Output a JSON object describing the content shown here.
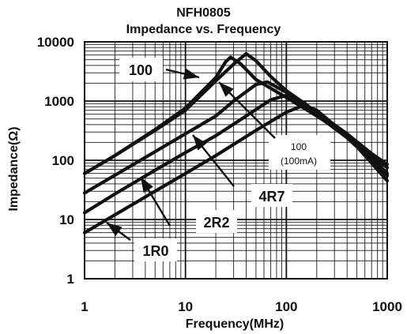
{
  "chart_data": {
    "type": "line",
    "title": "NFH0805",
    "subtitle": "Impedance vs. Frequency",
    "xlabel": "Frequency(MHz)",
    "ylabel": "Impedance(Ω)",
    "xscale": "log",
    "yscale": "log",
    "xlim": [
      1,
      1000
    ],
    "ylim": [
      1,
      10000
    ],
    "grid": true,
    "legend": "none",
    "x_ticks": [
      {
        "value": 1,
        "label": "1"
      },
      {
        "value": 10,
        "label": "10"
      },
      {
        "value": 100,
        "label": "100"
      },
      {
        "value": 1000,
        "label": "1000"
      }
    ],
    "y_ticks": [
      {
        "value": 1,
        "label": "1"
      },
      {
        "value": 10,
        "label": "10"
      },
      {
        "value": 100,
        "label": "100"
      },
      {
        "value": 1000,
        "label": "1000"
      },
      {
        "value": 10000,
        "label": "10000"
      }
    ],
    "series": [
      {
        "name": "100",
        "points": [
          [
            1,
            60
          ],
          [
            2,
            120
          ],
          [
            5,
            320
          ],
          [
            10,
            700
          ],
          [
            20,
            2200
          ],
          [
            30,
            4200
          ],
          [
            40,
            6300
          ],
          [
            50,
            4800
          ],
          [
            70,
            2600
          ],
          [
            100,
            1500
          ],
          [
            200,
            650
          ],
          [
            400,
            280
          ],
          [
            700,
            130
          ],
          [
            1000,
            85
          ]
        ]
      },
      {
        "name": "100 (100mA)",
        "points": [
          [
            1,
            60
          ],
          [
            2,
            120
          ],
          [
            5,
            330
          ],
          [
            10,
            760
          ],
          [
            20,
            2500
          ],
          [
            25,
            4600
          ],
          [
            28,
            5500
          ],
          [
            35,
            4300
          ],
          [
            50,
            2300
          ],
          [
            100,
            1150
          ],
          [
            200,
            560
          ],
          [
            400,
            260
          ],
          [
            700,
            120
          ],
          [
            1000,
            75
          ]
        ]
      },
      {
        "name": "4R7",
        "points": [
          [
            1,
            28
          ],
          [
            2,
            56
          ],
          [
            5,
            140
          ],
          [
            10,
            280
          ],
          [
            20,
            560
          ],
          [
            30,
            1000
          ],
          [
            50,
            1900
          ],
          [
            65,
            2100
          ],
          [
            100,
            1400
          ],
          [
            200,
            600
          ],
          [
            400,
            260
          ],
          [
            700,
            110
          ],
          [
            1000,
            60
          ]
        ]
      },
      {
        "name": "2R2",
        "points": [
          [
            1,
            13
          ],
          [
            2,
            27
          ],
          [
            5,
            68
          ],
          [
            10,
            135
          ],
          [
            20,
            260
          ],
          [
            40,
            560
          ],
          [
            70,
            1050
          ],
          [
            100,
            1250
          ],
          [
            150,
            950
          ],
          [
            200,
            580
          ],
          [
            400,
            240
          ],
          [
            700,
            100
          ],
          [
            1000,
            55
          ]
        ]
      },
      {
        "name": "1R0",
        "points": [
          [
            1,
            6
          ],
          [
            2,
            12
          ],
          [
            5,
            30
          ],
          [
            10,
            60
          ],
          [
            20,
            120
          ],
          [
            50,
            320
          ],
          [
            100,
            650
          ],
          [
            150,
            850
          ],
          [
            200,
            700
          ],
          [
            400,
            260
          ],
          [
            700,
            90
          ],
          [
            1000,
            45
          ]
        ]
      }
    ],
    "annotations": [
      {
        "text": "100",
        "target_series": "100"
      },
      {
        "text": "100\n(100mA)",
        "target_series": "100 (100mA)"
      },
      {
        "text": "4R7",
        "target_series": "4R7"
      },
      {
        "text": "2R2",
        "target_series": "2R2"
      },
      {
        "text": "1R0",
        "target_series": "1R0"
      }
    ]
  }
}
